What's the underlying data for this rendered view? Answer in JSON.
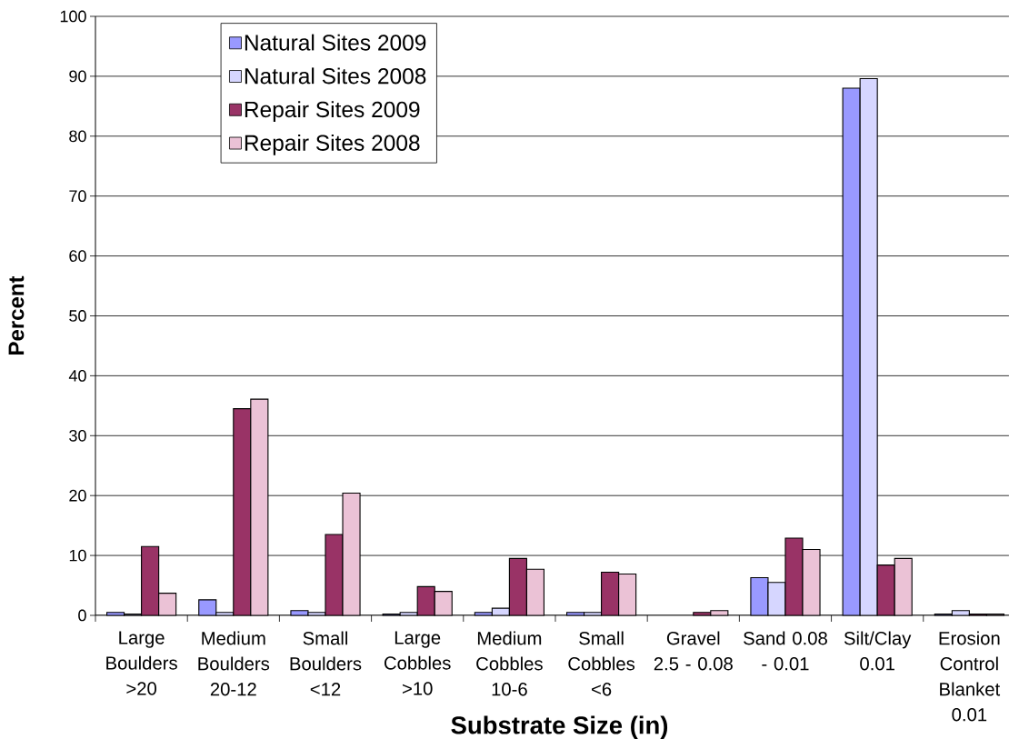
{
  "chart_data": {
    "type": "bar",
    "xlabel": "Substrate Size (in)",
    "ylabel": "Percent",
    "categories": [
      "Large Boulders >20",
      "Medium Boulders 20-12",
      "Small Boulders <12",
      "Large Cobbles >10",
      "Medium Cobbles 10-6",
      "Small Cobbles <6",
      "Gravel 2.5 - 0.08",
      "Sand 0.08 - 0.01",
      "Silt/Clay 0.01",
      "Erosion Control Blanket 0.01"
    ],
    "series": [
      {
        "name": "Natural Sites 2009",
        "color": "#9999ff",
        "values": [
          0.5,
          2.6,
          0.8,
          0.2,
          0.5,
          0.5,
          0,
          6.3,
          88.0,
          0.2
        ]
      },
      {
        "name": "Natural Sites 2008",
        "color": "#d6d6ff",
        "values": [
          0.2,
          0.5,
          0.5,
          0.5,
          1.2,
          0.5,
          0,
          5.5,
          89.6,
          0.8
        ]
      },
      {
        "name": "Repair Sites 2009",
        "color": "#993366",
        "values": [
          11.5,
          34.5,
          13.5,
          4.8,
          9.5,
          7.2,
          0.5,
          12.9,
          8.4,
          0.2
        ]
      },
      {
        "name": "Repair Sites 2008",
        "color": "#ebc2d6",
        "values": [
          3.7,
          36.1,
          20.4,
          4.0,
          7.7,
          6.9,
          0.8,
          11.0,
          9.5,
          0.2
        ]
      }
    ],
    "ylim": [
      0,
      100
    ],
    "yticks": [
      0,
      10,
      20,
      30,
      40,
      50,
      60,
      70,
      80,
      90,
      100
    ],
    "grid": "y",
    "legend": "top left"
  }
}
